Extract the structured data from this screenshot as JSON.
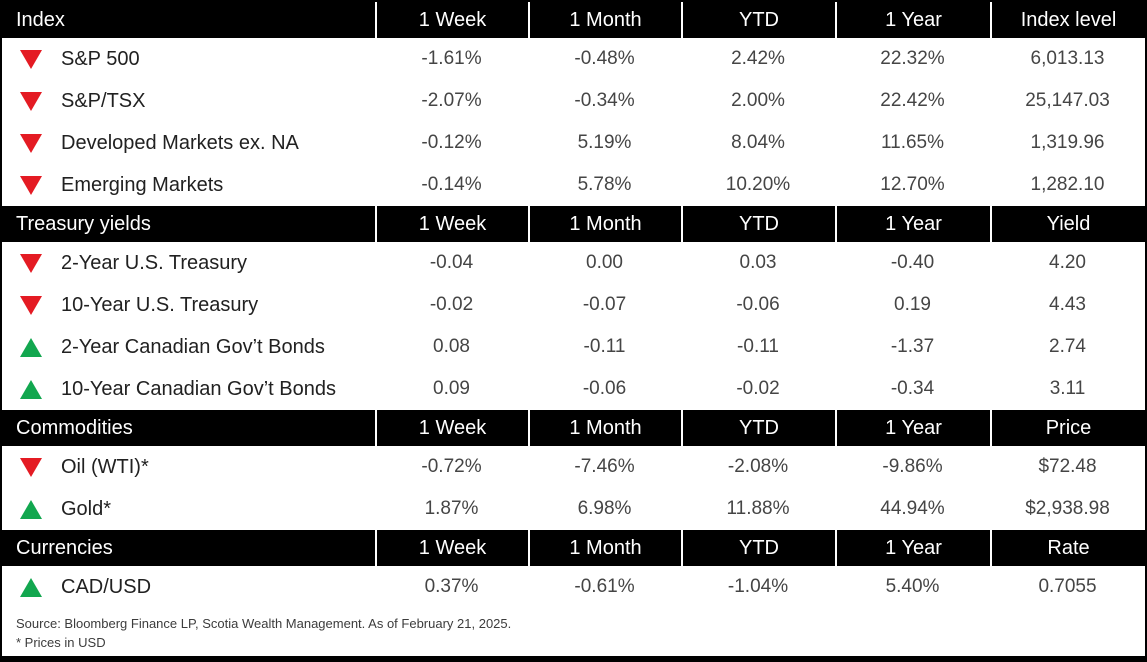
{
  "period_headers": [
    "1 Week",
    "1 Month",
    "YTD",
    "1 Year"
  ],
  "colors": {
    "up": "#12a74f",
    "down": "#e41b23",
    "band_bg": "#000000",
    "band_text": "#ffffff"
  },
  "sections": [
    {
      "title": "Index",
      "value_header": "Index level",
      "rows": [
        {
          "direction": "down",
          "label": "S&P 500",
          "values": [
            "-1.61%",
            "-0.48%",
            "2.42%",
            "22.32%",
            "6,013.13"
          ]
        },
        {
          "direction": "down",
          "label": "S&P/TSX",
          "values": [
            "-2.07%",
            "-0.34%",
            "2.00%",
            "22.42%",
            "25,147.03"
          ]
        },
        {
          "direction": "down",
          "label": "Developed Markets ex. NA",
          "values": [
            "-0.12%",
            "5.19%",
            "8.04%",
            "11.65%",
            "1,319.96"
          ]
        },
        {
          "direction": "down",
          "label": "Emerging Markets",
          "values": [
            "-0.14%",
            "5.78%",
            "10.20%",
            "12.70%",
            "1,282.10"
          ]
        }
      ]
    },
    {
      "title": "Treasury yields",
      "value_header": "Yield",
      "rows": [
        {
          "direction": "down",
          "label": "2-Year U.S. Treasury",
          "values": [
            "-0.04",
            "0.00",
            "0.03",
            "-0.40",
            "4.20"
          ]
        },
        {
          "direction": "down",
          "label": "10-Year U.S. Treasury",
          "values": [
            "-0.02",
            "-0.07",
            "-0.06",
            "0.19",
            "4.43"
          ]
        },
        {
          "direction": "up",
          "label": "2-Year Canadian Gov’t Bonds",
          "values": [
            "0.08",
            "-0.11",
            "-0.11",
            "-1.37",
            "2.74"
          ]
        },
        {
          "direction": "up",
          "label": "10-Year Canadian Gov’t Bonds",
          "values": [
            "0.09",
            "-0.06",
            "-0.02",
            "-0.34",
            "3.11"
          ]
        }
      ]
    },
    {
      "title": "Commodities",
      "value_header": "Price",
      "rows": [
        {
          "direction": "down",
          "label": "Oil (WTI)*",
          "values": [
            "-0.72%",
            "-7.46%",
            "-2.08%",
            "-9.86%",
            "$72.48"
          ]
        },
        {
          "direction": "up",
          "label": "Gold*",
          "values": [
            "1.87%",
            "6.98%",
            "11.88%",
            "44.94%",
            "$2,938.98"
          ]
        }
      ]
    },
    {
      "title": "Currencies",
      "value_header": "Rate",
      "rows": [
        {
          "direction": "up",
          "label": "CAD/USD",
          "values": [
            "0.37%",
            "-0.61%",
            "-1.04%",
            "5.40%",
            "0.7055"
          ]
        }
      ]
    }
  ],
  "footer": {
    "source": "Source: Bloomberg Finance LP, Scotia Wealth Management. As of February 21, 2025.",
    "note": "* Prices in USD"
  }
}
